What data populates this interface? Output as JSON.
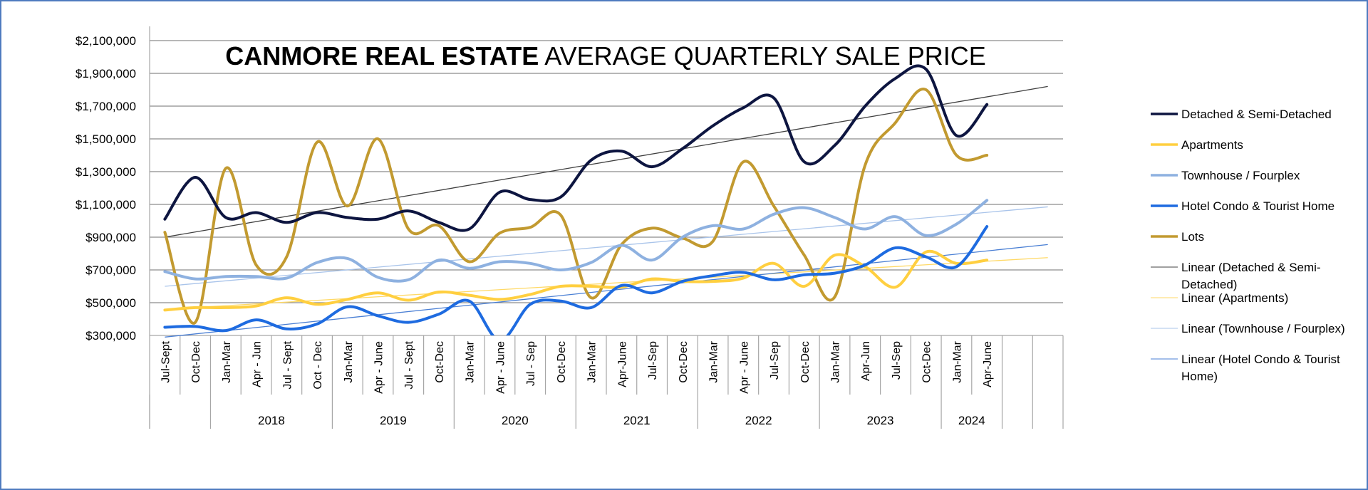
{
  "chart_data": {
    "type": "line",
    "title_bold": "CANMORE REAL ESTATE",
    "title_rest": " AVERAGE QUARTERLY SALE PRICE",
    "y_ticks": [
      "$300,000",
      "$500,000",
      "$700,000",
      "$900,000",
      "$1,100,000",
      "$1,300,000",
      "$1,500,000",
      "$1,700,000",
      "$1,900,000",
      "$2,100,000"
    ],
    "ylim": [
      300000,
      2100000
    ],
    "grid": true,
    "legend_position": "right",
    "categories": [
      "Jul-Sept",
      "Oct-Dec",
      "Jan-Mar",
      "Apr - Jun",
      "Jul - Sept",
      "Oct - Dec",
      "Jan-Mar",
      "Apr - June",
      "Jul - Sept",
      "Oct-Dec",
      "Jan-Mar",
      "Apr - June",
      "Jul - Sep",
      "Oct-Dec",
      "Jan-Mar",
      "Apr-June",
      "Jul-Sep",
      "Oct-Dec",
      "Jan-Mar",
      "Apr - June",
      "Jul-Sep",
      "Oct-Dec",
      "Jan-Mar",
      "Apr-Jun",
      "Jul-Sep",
      "Oct-Dec",
      "Jan-Mar",
      "Apr-June"
    ],
    "years": [
      {
        "label": "2018"
      },
      {
        "label": "2019"
      },
      {
        "label": "2020"
      },
      {
        "label": "2021"
      },
      {
        "label": "2022"
      },
      {
        "label": "2023"
      },
      {
        "label": "2024"
      }
    ],
    "series": [
      {
        "name": "Detached & Semi-Detached",
        "color": "#0d1540",
        "values": [
          1010000,
          1265000,
          1020000,
          1050000,
          990000,
          1050000,
          1020000,
          1010000,
          1060000,
          990000,
          950000,
          1175000,
          1130000,
          1145000,
          1370000,
          1425000,
          1330000,
          1440000,
          1580000,
          1690000,
          1750000,
          1360000,
          1460000,
          1700000,
          1870000,
          1925000,
          1520000,
          1710000
        ]
      },
      {
        "name": "Apartments",
        "color": "#ffcf40",
        "values": [
          455000,
          470000,
          470000,
          480000,
          530000,
          490000,
          520000,
          560000,
          515000,
          565000,
          545000,
          520000,
          550000,
          600000,
          600000,
          595000,
          645000,
          630000,
          630000,
          650000,
          740000,
          600000,
          790000,
          720000,
          595000,
          810000,
          740000,
          760000
        ]
      },
      {
        "name": "Townhouse / Fourplex",
        "color": "#8eb1e0",
        "values": [
          690000,
          645000,
          660000,
          660000,
          650000,
          745000,
          770000,
          655000,
          640000,
          760000,
          710000,
          750000,
          740000,
          700000,
          745000,
          850000,
          760000,
          900000,
          970000,
          950000,
          1040000,
          1080000,
          1020000,
          950000,
          1025000,
          910000,
          980000,
          1125000
        ]
      },
      {
        "name": "Hotel Condo & Tourist Home",
        "color": "#1e6be0",
        "values": [
          350000,
          355000,
          330000,
          395000,
          340000,
          370000,
          475000,
          420000,
          380000,
          430000,
          510000,
          270000,
          490000,
          510000,
          470000,
          605000,
          560000,
          630000,
          665000,
          685000,
          640000,
          670000,
          680000,
          730000,
          835000,
          780000,
          720000,
          965000
        ]
      },
      {
        "name": "Lots",
        "color": "#c29a30",
        "values": [
          930000,
          380000,
          1320000,
          730000,
          780000,
          1480000,
          1090000,
          1500000,
          950000,
          970000,
          750000,
          925000,
          960000,
          1035000,
          530000,
          855000,
          955000,
          895000,
          875000,
          1360000,
          1090000,
          790000,
          535000,
          1340000,
          1600000,
          1800000,
          1400000,
          1400000
        ]
      }
    ],
    "trendlines": [
      {
        "name": "Linear (Detached & Semi-Detached)",
        "color": "#404040",
        "start": 900000,
        "end": 1820000
      },
      {
        "name": "Linear (Apartments)",
        "color": "#ffd966",
        "start": 460000,
        "end": 775000
      },
      {
        "name": "Linear (Townhouse / Fourplex)",
        "color": "#a9c4ea",
        "start": 600000,
        "end": 1085000
      },
      {
        "name": "Linear (Hotel Condo & Tourist Home)",
        "color": "#4a7fd4",
        "start": 290000,
        "end": 855000
      }
    ],
    "legend": [
      {
        "lines": [
          "Detached & Semi-Detached"
        ],
        "color": "#0d1540",
        "weight": 3.5
      },
      {
        "lines": [
          "Apartments"
        ],
        "color": "#ffcf40",
        "weight": 3.5
      },
      {
        "lines": [
          "Townhouse / Fourplex"
        ],
        "color": "#8eb1e0",
        "weight": 3.5
      },
      {
        "lines": [
          "Hotel Condo & Tourist Home"
        ],
        "color": "#1e6be0",
        "weight": 3.5
      },
      {
        "lines": [
          "Lots"
        ],
        "color": "#c29a30",
        "weight": 3.5
      },
      {
        "lines": [
          "Linear (Detached & Semi-",
          "Detached)"
        ],
        "color": "#404040",
        "weight": 1
      },
      {
        "lines": [
          "Linear (Apartments)"
        ],
        "color": "#ffd966",
        "weight": 1
      },
      {
        "lines": [
          "Linear (Townhouse / Fourplex)"
        ],
        "color": "#a9c4ea",
        "weight": 1
      },
      {
        "lines": [
          "Linear (Hotel Condo & Tourist",
          "Home)"
        ],
        "color": "#4a7fd4",
        "weight": 1
      }
    ]
  }
}
